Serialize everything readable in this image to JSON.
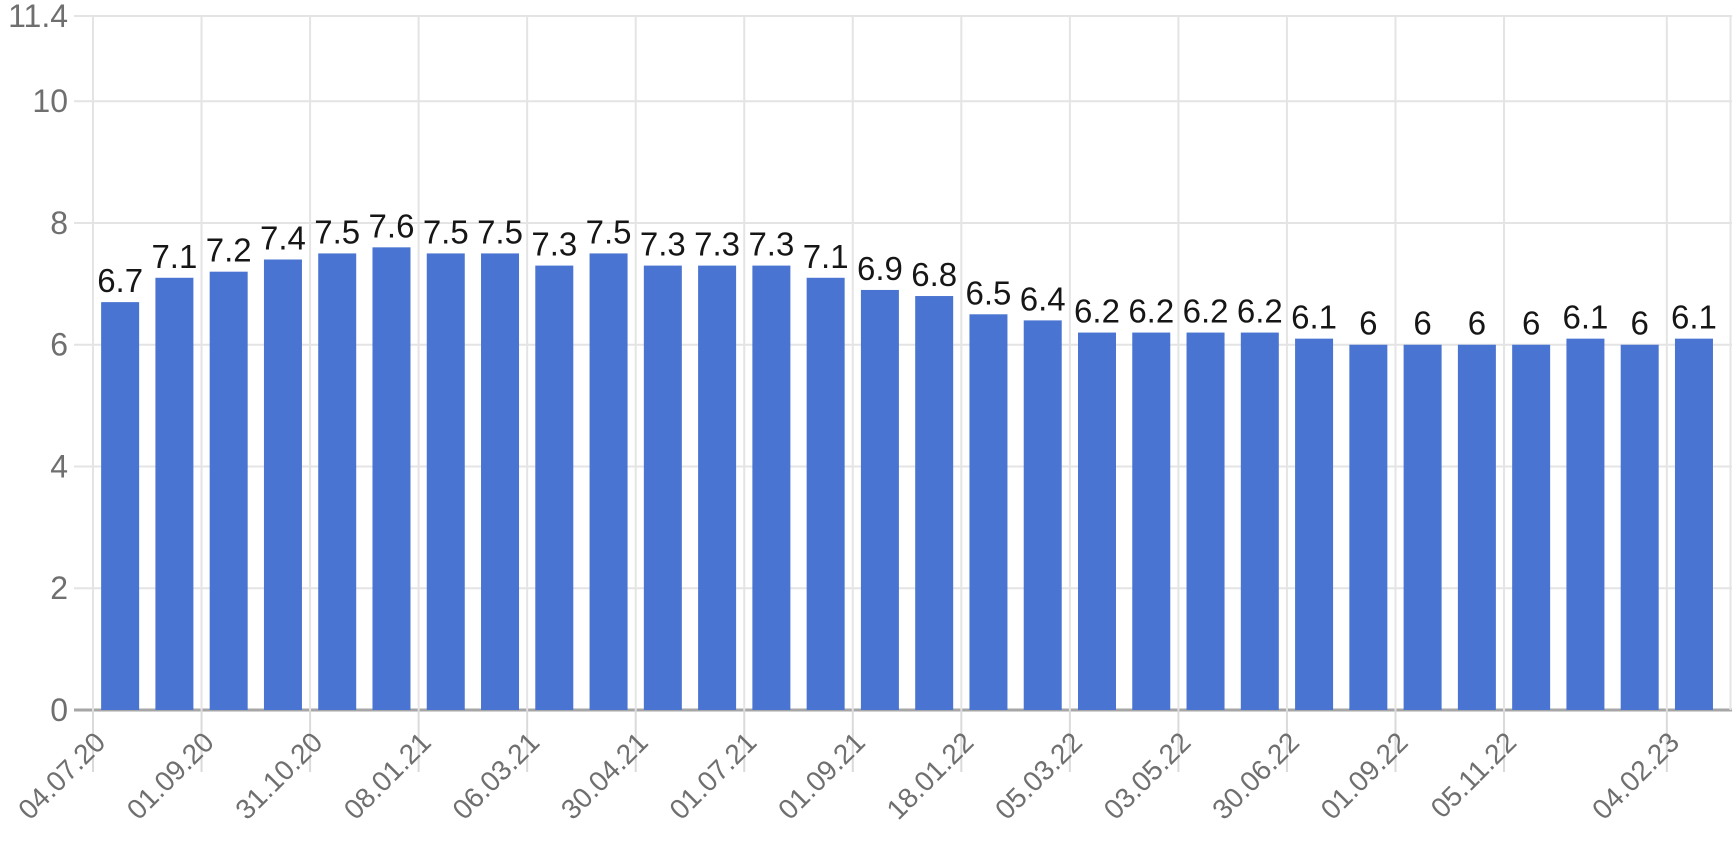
{
  "chart_data": {
    "type": "bar",
    "title": "",
    "xlabel": "",
    "ylabel": "",
    "values": [
      6.7,
      7.1,
      7.2,
      7.4,
      7.5,
      7.6,
      7.5,
      7.5,
      7.3,
      7.5,
      7.3,
      7.3,
      7.3,
      7.1,
      6.9,
      6.8,
      6.5,
      6.4,
      6.2,
      6.2,
      6.2,
      6.2,
      6.1,
      6,
      6,
      6,
      6,
      6.1,
      6,
      6.1
    ],
    "bar_value_labels": [
      "6.7",
      "7.1",
      "7.2",
      "7.4",
      "7.5",
      "7.6",
      "7.5",
      "7.5",
      "7.3",
      "7.5",
      "7.3",
      "7.3",
      "7.3",
      "7.1",
      "6.9",
      "6.8",
      "6.5",
      "6.4",
      "6.2",
      "6.2",
      "6.2",
      "6.2",
      "6.1",
      "6",
      "6",
      "6",
      "6",
      "6.1",
      "6",
      "6.1"
    ],
    "x_tick_labels": [
      "04.07.20",
      "01.09.20",
      "31.10.20",
      "08.01.21",
      "06.03.21",
      "30.04.21",
      "01.07.21",
      "01.09.21",
      "18.01.22",
      "05.03.22",
      "03.05.22",
      "30.06.22",
      "01.09.22",
      "05.11.22",
      "04.02.23"
    ],
    "x_tick_bar_index": [
      0,
      2,
      4,
      6,
      8,
      10,
      12,
      14,
      16,
      18,
      20,
      22,
      24,
      26,
      29
    ],
    "y_axis": {
      "tick_values": [
        0,
        2,
        4,
        6,
        8,
        10
      ],
      "tick_labels": [
        "0",
        "2",
        "4",
        "6",
        "8",
        "10"
      ],
      "max": 11.4,
      "max_label": "11.4",
      "min": 0
    },
    "layout_hints": {
      "grid": "on",
      "legend": "none",
      "data_labels": "above bars",
      "x_label_rotation_deg": -45,
      "vertical_gridlines": "at every labeled tick (every other bar boundary) plus right edge"
    },
    "colors": {
      "bar": "#4a74d1",
      "gridline": "#e4e4e4",
      "tick_line": "#dadada",
      "baseline": "#a6a6a6",
      "axis_text": "#6f6f6f",
      "value_text": "#161616",
      "background": "#ffffff"
    }
  }
}
